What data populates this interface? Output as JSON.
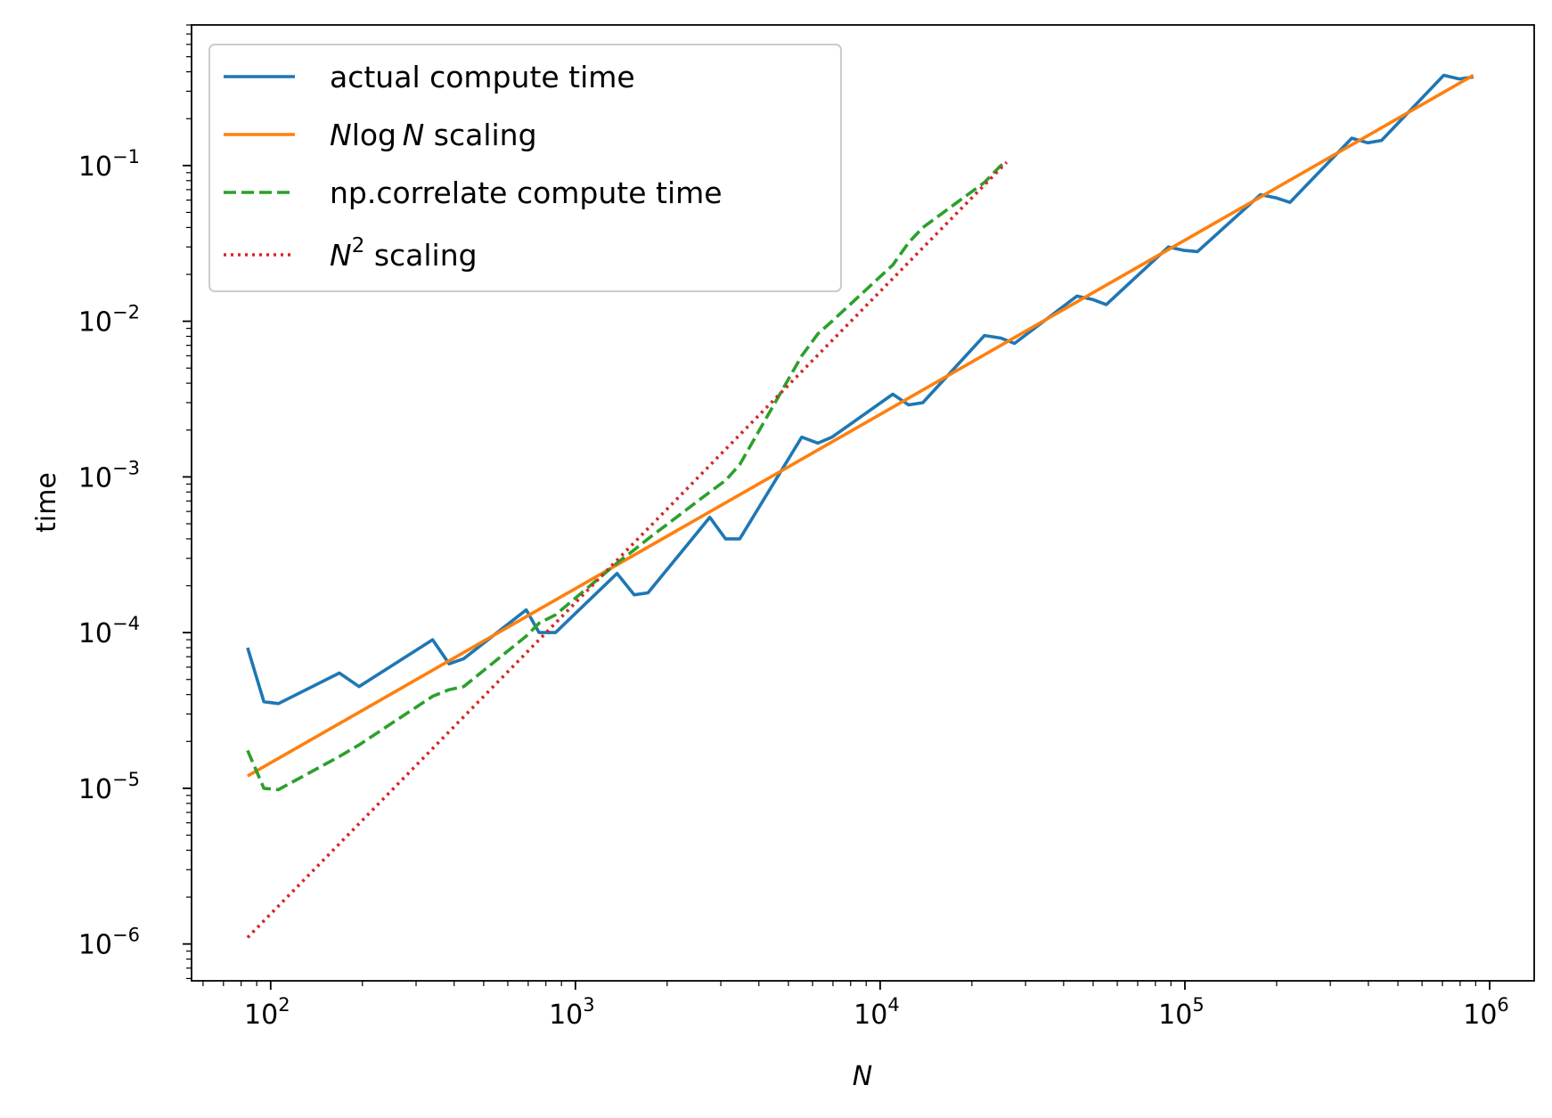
{
  "chart_data": {
    "type": "line",
    "xscale": "log",
    "yscale": "log",
    "xlim": [
      55,
      1400000
    ],
    "ylim": [
      5.8e-07,
      0.8
    ],
    "xlabel": "N",
    "ylabel": "time",
    "legend_position": "top-left",
    "grid": false,
    "x_ticks": [
      {
        "value": 100,
        "base": "10",
        "exp": "2"
      },
      {
        "value": 1000,
        "base": "10",
        "exp": "3"
      },
      {
        "value": 10000,
        "base": "10",
        "exp": "4"
      },
      {
        "value": 100000,
        "base": "10",
        "exp": "5"
      },
      {
        "value": 1000000,
        "base": "10",
        "exp": "6"
      }
    ],
    "y_ticks": [
      {
        "value": 1e-06,
        "base": "10",
        "exp": "−6"
      },
      {
        "value": 1e-05,
        "base": "10",
        "exp": "−5"
      },
      {
        "value": 0.0001,
        "base": "10",
        "exp": "−4"
      },
      {
        "value": 0.001,
        "base": "10",
        "exp": "−3"
      },
      {
        "value": 0.01,
        "base": "10",
        "exp": "−2"
      },
      {
        "value": 0.1,
        "base": "10",
        "exp": "−1"
      }
    ],
    "series": [
      {
        "name": "actual compute time",
        "color": "#1f77b4",
        "style": "solid",
        "points": [
          [
            84,
            8e-05
          ],
          [
            95,
            3.6e-05
          ],
          [
            106,
            3.5e-05
          ],
          [
            168,
            5.5e-05
          ],
          [
            195,
            4.5e-05
          ],
          [
            340,
            9e-05
          ],
          [
            385,
            6.3e-05
          ],
          [
            430,
            6.8e-05
          ],
          [
            690,
            0.00014
          ],
          [
            760,
            0.0001
          ],
          [
            860,
            0.0001
          ],
          [
            1370,
            0.00024
          ],
          [
            1560,
            0.000175
          ],
          [
            1730,
            0.00018
          ],
          [
            2760,
            0.00055
          ],
          [
            3110,
            0.0004
          ],
          [
            3460,
            0.0004
          ],
          [
            5530,
            0.0018
          ],
          [
            6250,
            0.00165
          ],
          [
            6950,
            0.0018
          ],
          [
            11000,
            0.0034
          ],
          [
            12400,
            0.0029
          ],
          [
            13800,
            0.003
          ],
          [
            22000,
            0.0081
          ],
          [
            24900,
            0.0078
          ],
          [
            27600,
            0.0072
          ],
          [
            44200,
            0.0145
          ],
          [
            49700,
            0.0138
          ],
          [
            55200,
            0.0128
          ],
          [
            88300,
            0.03
          ],
          [
            99400,
            0.0285
          ],
          [
            110000,
            0.028
          ],
          [
            177000,
            0.065
          ],
          [
            199000,
            0.062
          ],
          [
            221000,
            0.058
          ],
          [
            353000,
            0.15
          ],
          [
            398000,
            0.14
          ],
          [
            442000,
            0.145
          ],
          [
            707000,
            0.38
          ],
          [
            795000,
            0.36
          ],
          [
            884000,
            0.37
          ]
        ]
      },
      {
        "name": "N log N scaling",
        "label_parts": {
          "a": "N",
          "b": "log",
          "c": "N",
          "d": " scaling"
        },
        "color": "#ff7f0e",
        "style": "solid",
        "points": [
          [
            84,
            1.2e-05
          ],
          [
            884000,
            0.38
          ]
        ]
      },
      {
        "name": "np.correlate compute time",
        "color": "#2ca02c",
        "style": "dashed",
        "points": [
          [
            84,
            1.75e-05
          ],
          [
            95,
            1e-05
          ],
          [
            106,
            9.8e-06
          ],
          [
            168,
            1.6e-05
          ],
          [
            195,
            1.9e-05
          ],
          [
            340,
            3.9e-05
          ],
          [
            385,
            4.3e-05
          ],
          [
            430,
            4.5e-05
          ],
          [
            690,
            9.5e-05
          ],
          [
            760,
            0.000115
          ],
          [
            860,
            0.00013
          ],
          [
            1370,
            0.00028
          ],
          [
            1560,
            0.00034
          ],
          [
            1730,
            0.0004
          ],
          [
            2760,
            0.0008
          ],
          [
            3110,
            0.00095
          ],
          [
            3460,
            0.0012
          ],
          [
            5530,
            0.006
          ],
          [
            6250,
            0.0083
          ],
          [
            6950,
            0.01
          ],
          [
            11000,
            0.023
          ],
          [
            12400,
            0.032
          ],
          [
            13800,
            0.04
          ],
          [
            22000,
            0.078
          ],
          [
            24900,
            0.1
          ],
          [
            26000,
            0.105
          ]
        ]
      },
      {
        "name": "N² scaling",
        "label_parts": {
          "a": "N",
          "sup": "2",
          "d": " scaling"
        },
        "color": "#d62728",
        "style": "dotted",
        "points": [
          [
            84,
            1.1e-06
          ],
          [
            26000,
            0.105
          ]
        ]
      }
    ]
  }
}
